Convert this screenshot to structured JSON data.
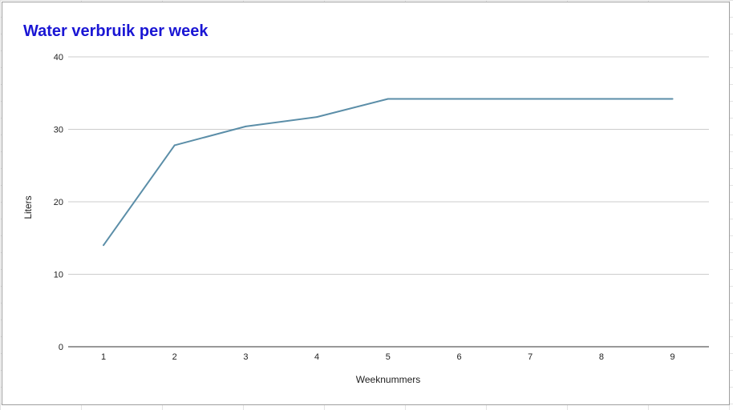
{
  "chart_data": {
    "type": "line",
    "title": "Water verbruik per week",
    "xlabel": "Weeknummers",
    "ylabel": "Liters",
    "categories": [
      "1",
      "2",
      "3",
      "4",
      "5",
      "6",
      "7",
      "8",
      "9"
    ],
    "series": [
      {
        "values": [
          14,
          27.8,
          30.4,
          31.7,
          34.2,
          34.2,
          34.2,
          34.2,
          34.2
        ]
      }
    ],
    "ylim": [
      0,
      40
    ],
    "yticks": [
      0,
      10,
      20,
      30,
      40
    ],
    "grid": true,
    "legend": "none",
    "colors": {
      "title": "#1a16d4",
      "line": "#5b8ea8",
      "gridline": "#cccccc",
      "axis": "#333333"
    }
  }
}
